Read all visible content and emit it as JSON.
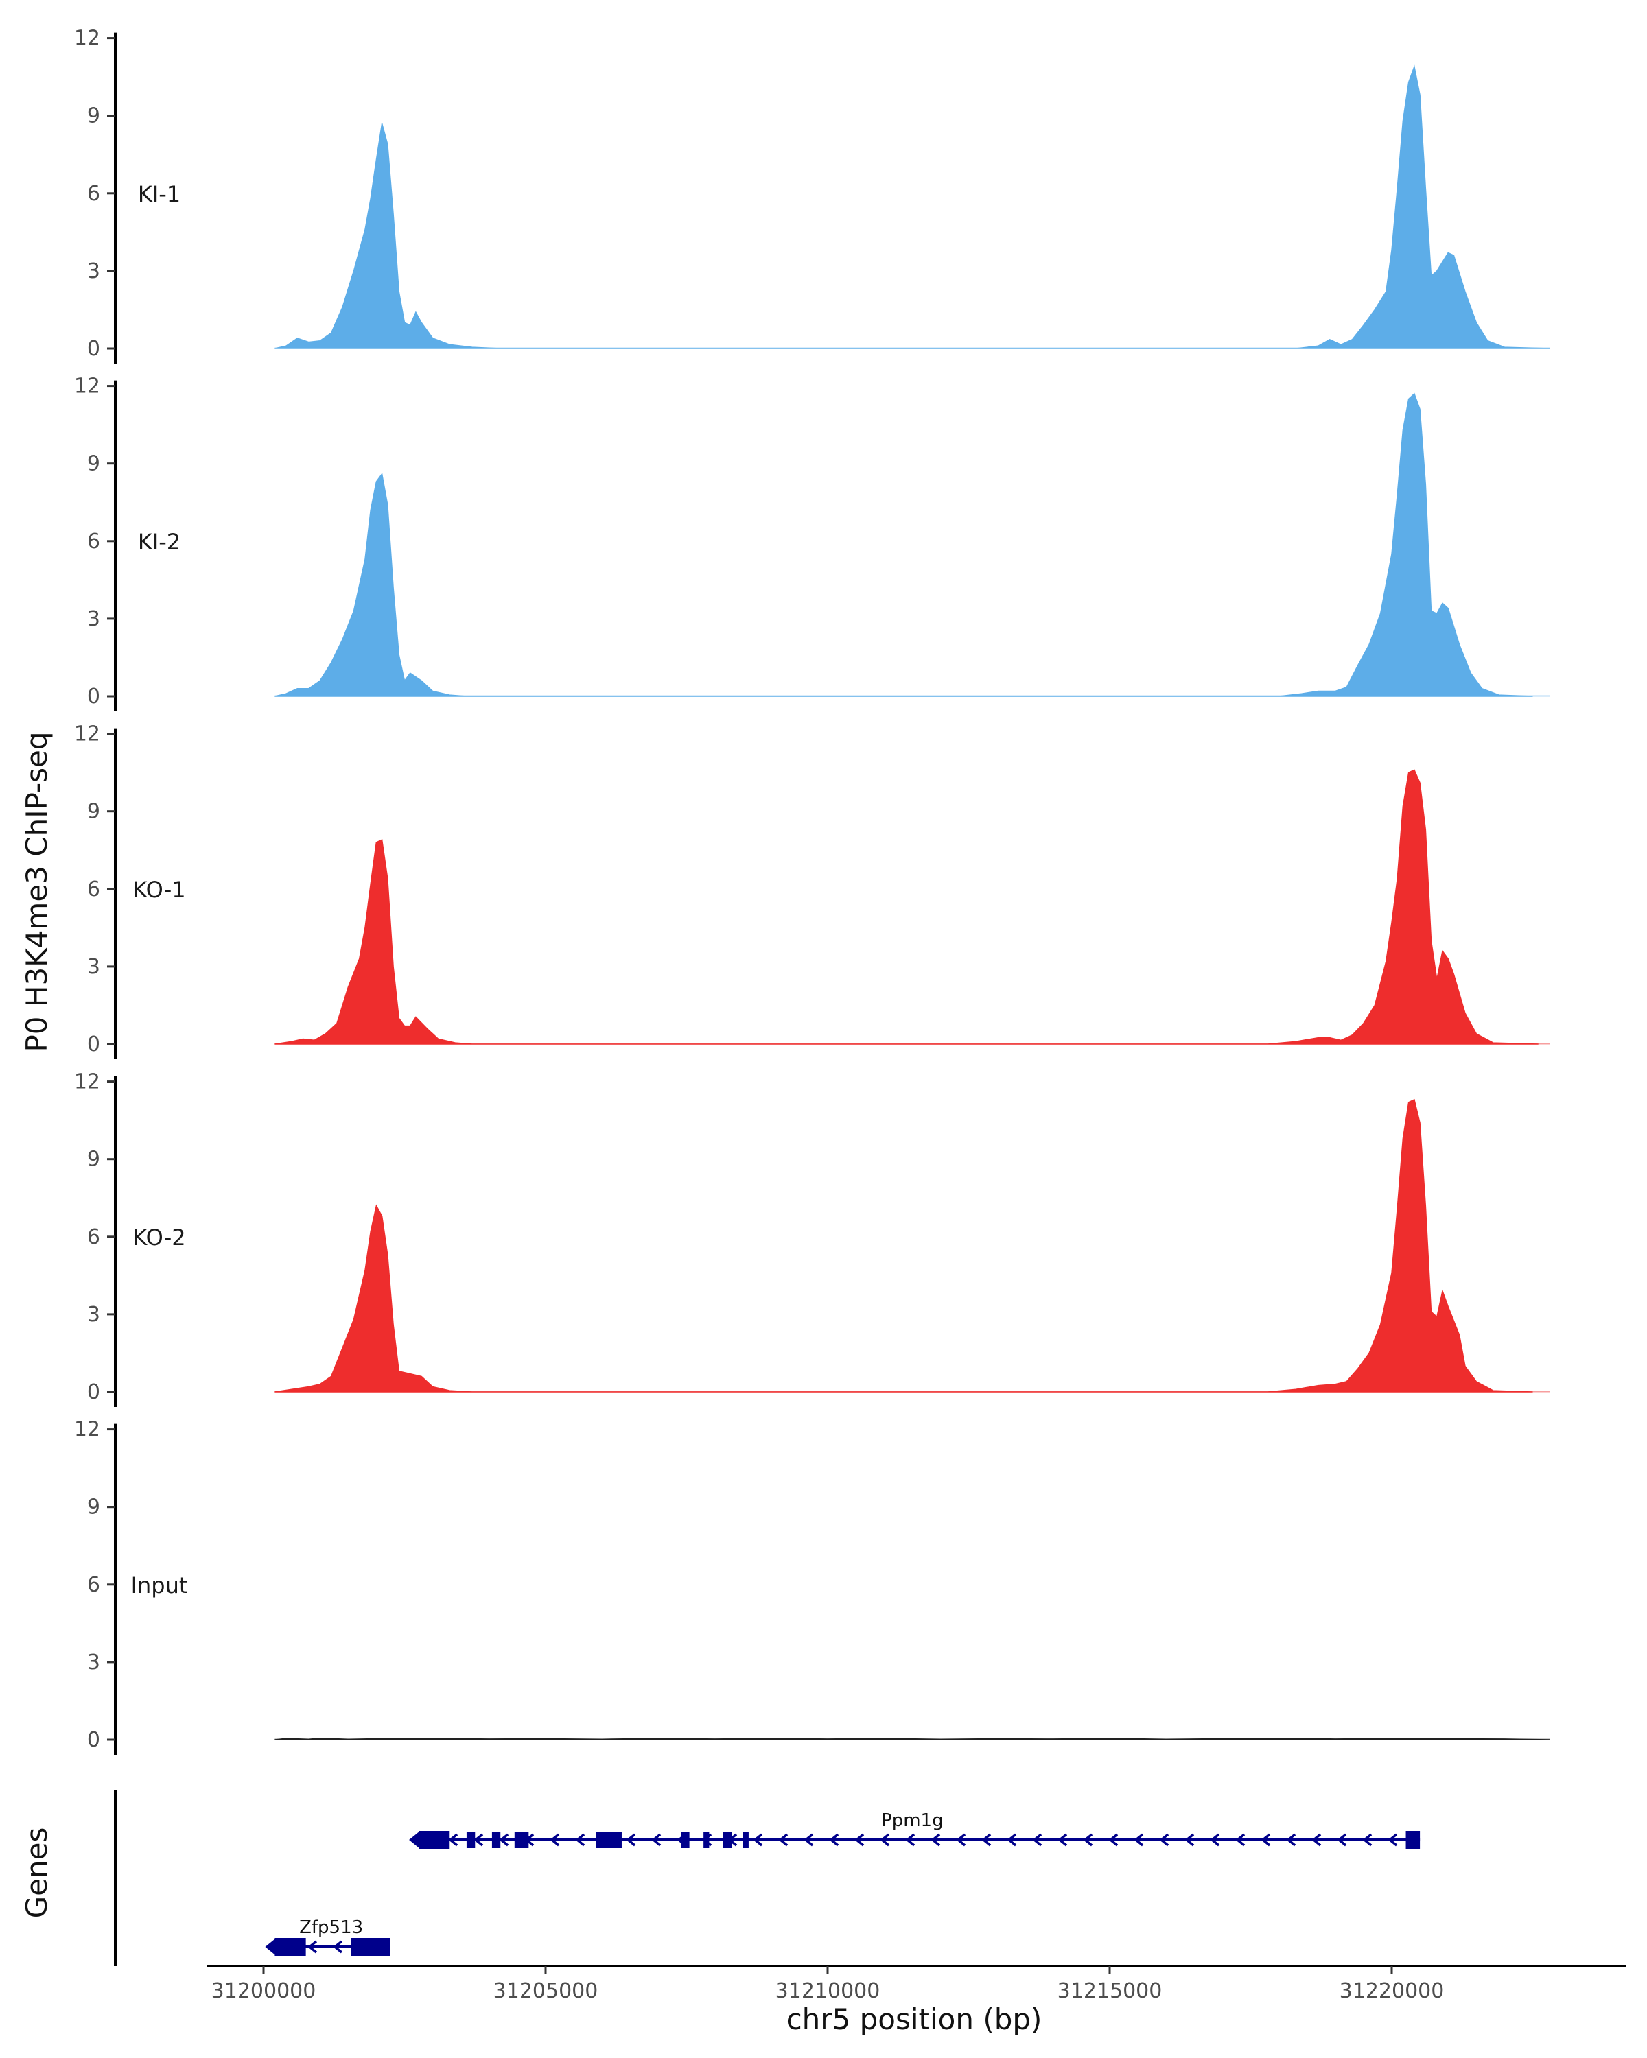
{
  "chart_data": {
    "type": "area",
    "title": "",
    "ylabel": "P0 H3K4me3 ChIP-seq",
    "xlabel": "chr5 position (bp)",
    "xlim": [
      31199000,
      31224000
    ],
    "ylim": [
      0,
      12
    ],
    "yticks": [
      0,
      3,
      6,
      9,
      12
    ],
    "xticks": [
      31200000,
      31205000,
      31210000,
      31215000,
      31220000
    ],
    "data_range": [
      31200200,
      31222800
    ],
    "tracks": [
      {
        "name": "KI-1",
        "color": "#5DADE8",
        "points": [
          [
            31200200,
            0
          ],
          [
            31200400,
            0.1
          ],
          [
            31200600,
            0.4
          ],
          [
            31200800,
            0.25
          ],
          [
            31201000,
            0.3
          ],
          [
            31201200,
            0.6
          ],
          [
            31201400,
            1.6
          ],
          [
            31201600,
            3.0
          ],
          [
            31201800,
            4.6
          ],
          [
            31201900,
            5.8
          ],
          [
            31202000,
            7.3
          ],
          [
            31202100,
            8.7
          ],
          [
            31202200,
            7.9
          ],
          [
            31202300,
            5.2
          ],
          [
            31202400,
            2.2
          ],
          [
            31202500,
            1.0
          ],
          [
            31202600,
            0.9
          ],
          [
            31202700,
            1.4
          ],
          [
            31202800,
            1.0
          ],
          [
            31203000,
            0.4
          ],
          [
            31203300,
            0.15
          ],
          [
            31203700,
            0.05
          ],
          [
            31204200,
            0
          ],
          [
            31218300,
            0
          ],
          [
            31218700,
            0.1
          ],
          [
            31218900,
            0.35
          ],
          [
            31219100,
            0.15
          ],
          [
            31219300,
            0.35
          ],
          [
            31219500,
            0.9
          ],
          [
            31219700,
            1.5
          ],
          [
            31219900,
            2.2
          ],
          [
            31220000,
            3.8
          ],
          [
            31220100,
            6.2
          ],
          [
            31220200,
            8.8
          ],
          [
            31220300,
            10.3
          ],
          [
            31220400,
            10.9
          ],
          [
            31220500,
            9.8
          ],
          [
            31220600,
            6.2
          ],
          [
            31220700,
            2.8
          ],
          [
            31220800,
            3.0
          ],
          [
            31221000,
            3.7
          ],
          [
            31221100,
            3.6
          ],
          [
            31221300,
            2.2
          ],
          [
            31221500,
            1.0
          ],
          [
            31221700,
            0.3
          ],
          [
            31222000,
            0.05
          ],
          [
            31222800,
            0
          ]
        ]
      },
      {
        "name": "KI-2",
        "color": "#5DADE8",
        "points": [
          [
            31200200,
            0
          ],
          [
            31200400,
            0.1
          ],
          [
            31200600,
            0.3
          ],
          [
            31200800,
            0.3
          ],
          [
            31201000,
            0.6
          ],
          [
            31201200,
            1.3
          ],
          [
            31201400,
            2.2
          ],
          [
            31201600,
            3.3
          ],
          [
            31201800,
            5.3
          ],
          [
            31201900,
            7.2
          ],
          [
            31202000,
            8.3
          ],
          [
            31202100,
            8.6
          ],
          [
            31202200,
            7.4
          ],
          [
            31202300,
            4.2
          ],
          [
            31202400,
            1.6
          ],
          [
            31202500,
            0.6
          ],
          [
            31202600,
            0.9
          ],
          [
            31202800,
            0.6
          ],
          [
            31203000,
            0.2
          ],
          [
            31203300,
            0.05
          ],
          [
            31203600,
            0
          ],
          [
            31218000,
            0
          ],
          [
            31218400,
            0.1
          ],
          [
            31218700,
            0.2
          ],
          [
            31219000,
            0.2
          ],
          [
            31219200,
            0.35
          ],
          [
            31219400,
            1.2
          ],
          [
            31219600,
            2.0
          ],
          [
            31219800,
            3.2
          ],
          [
            31220000,
            5.5
          ],
          [
            31220100,
            7.8
          ],
          [
            31220200,
            10.3
          ],
          [
            31220300,
            11.5
          ],
          [
            31220400,
            11.7
          ],
          [
            31220500,
            11.1
          ],
          [
            31220600,
            8.2
          ],
          [
            31220700,
            3.3
          ],
          [
            31220800,
            3.2
          ],
          [
            31220900,
            3.6
          ],
          [
            31221000,
            3.4
          ],
          [
            31221200,
            2.0
          ],
          [
            31221400,
            0.9
          ],
          [
            31221600,
            0.3
          ],
          [
            31221900,
            0.05
          ],
          [
            31222500,
            0
          ]
        ]
      },
      {
        "name": "KO-1",
        "color": "#EE2D2D",
        "points": [
          [
            31200200,
            0
          ],
          [
            31200500,
            0.1
          ],
          [
            31200700,
            0.2
          ],
          [
            31200900,
            0.15
          ],
          [
            31201100,
            0.4
          ],
          [
            31201300,
            0.8
          ],
          [
            31201500,
            2.2
          ],
          [
            31201700,
            3.3
          ],
          [
            31201800,
            4.5
          ],
          [
            31201900,
            6.2
          ],
          [
            31202000,
            7.8
          ],
          [
            31202100,
            7.9
          ],
          [
            31202200,
            6.4
          ],
          [
            31202300,
            3.0
          ],
          [
            31202400,
            1.0
          ],
          [
            31202500,
            0.7
          ],
          [
            31202600,
            0.7
          ],
          [
            31202700,
            1.05
          ],
          [
            31202900,
            0.6
          ],
          [
            31203100,
            0.2
          ],
          [
            31203400,
            0.05
          ],
          [
            31203700,
            0
          ],
          [
            31217800,
            0
          ],
          [
            31218300,
            0.1
          ],
          [
            31218700,
            0.25
          ],
          [
            31218900,
            0.25
          ],
          [
            31219100,
            0.15
          ],
          [
            31219300,
            0.35
          ],
          [
            31219500,
            0.8
          ],
          [
            31219700,
            1.5
          ],
          [
            31219900,
            3.2
          ],
          [
            31220000,
            4.7
          ],
          [
            31220100,
            6.4
          ],
          [
            31220200,
            9.2
          ],
          [
            31220300,
            10.5
          ],
          [
            31220400,
            10.6
          ],
          [
            31220500,
            10.1
          ],
          [
            31220600,
            8.3
          ],
          [
            31220700,
            4.0
          ],
          [
            31220800,
            2.5
          ],
          [
            31220900,
            3.6
          ],
          [
            31221000,
            3.3
          ],
          [
            31221100,
            2.7
          ],
          [
            31221300,
            1.2
          ],
          [
            31221500,
            0.4
          ],
          [
            31221800,
            0.05
          ],
          [
            31222600,
            0
          ]
        ]
      },
      {
        "name": "KO-2",
        "color": "#EE2D2D",
        "points": [
          [
            31200200,
            0
          ],
          [
            31200500,
            0.1
          ],
          [
            31200800,
            0.2
          ],
          [
            31201000,
            0.3
          ],
          [
            31201200,
            0.6
          ],
          [
            31201400,
            1.7
          ],
          [
            31201600,
            2.8
          ],
          [
            31201800,
            4.7
          ],
          [
            31201900,
            6.2
          ],
          [
            31202000,
            7.2
          ],
          [
            31202100,
            6.8
          ],
          [
            31202200,
            5.3
          ],
          [
            31202300,
            2.6
          ],
          [
            31202400,
            0.8
          ],
          [
            31202600,
            0.7
          ],
          [
            31202800,
            0.6
          ],
          [
            31203000,
            0.2
          ],
          [
            31203300,
            0.05
          ],
          [
            31203700,
            0
          ],
          [
            31217800,
            0
          ],
          [
            31218300,
            0.1
          ],
          [
            31218700,
            0.25
          ],
          [
            31219000,
            0.3
          ],
          [
            31219200,
            0.4
          ],
          [
            31219400,
            0.9
          ],
          [
            31219600,
            1.5
          ],
          [
            31219800,
            2.6
          ],
          [
            31220000,
            4.6
          ],
          [
            31220100,
            7.1
          ],
          [
            31220200,
            9.8
          ],
          [
            31220300,
            11.2
          ],
          [
            31220400,
            11.3
          ],
          [
            31220500,
            10.4
          ],
          [
            31220600,
            7.2
          ],
          [
            31220700,
            3.1
          ],
          [
            31220800,
            2.9
          ],
          [
            31220900,
            3.9
          ],
          [
            31221000,
            3.3
          ],
          [
            31221200,
            2.2
          ],
          [
            31221300,
            1.0
          ],
          [
            31221500,
            0.4
          ],
          [
            31221800,
            0.05
          ],
          [
            31222500,
            0
          ]
        ]
      },
      {
        "name": "Input",
        "color": "#222222",
        "points": [
          [
            31200200,
            0
          ],
          [
            31200400,
            0.05
          ],
          [
            31200800,
            0.02
          ],
          [
            31201000,
            0.06
          ],
          [
            31201500,
            0.02
          ],
          [
            31202000,
            0.04
          ],
          [
            31203000,
            0.05
          ],
          [
            31204000,
            0.03
          ],
          [
            31205000,
            0.04
          ],
          [
            31206000,
            0.02
          ],
          [
            31207000,
            0.05
          ],
          [
            31208000,
            0.03
          ],
          [
            31209000,
            0.05
          ],
          [
            31210000,
            0.03
          ],
          [
            31211000,
            0.05
          ],
          [
            31212000,
            0.02
          ],
          [
            31213000,
            0.04
          ],
          [
            31214000,
            0.03
          ],
          [
            31215000,
            0.05
          ],
          [
            31216000,
            0.02
          ],
          [
            31217000,
            0.04
          ],
          [
            31218000,
            0.06
          ],
          [
            31219000,
            0.03
          ],
          [
            31220000,
            0.05
          ],
          [
            31221000,
            0.04
          ],
          [
            31222000,
            0.03
          ],
          [
            31222800,
            0
          ]
        ]
      }
    ],
    "genes_panel": {
      "ylabel": "Genes",
      "color": "#00008B",
      "genes": [
        {
          "name": "Ppm1g",
          "strand": "-",
          "start": 31202750,
          "end": 31220500,
          "label_pos": 31211500,
          "exons": [
            [
              31202750,
              31203300
            ],
            [
              31203600,
              31203750
            ],
            [
              31204050,
              31204200
            ],
            [
              31204450,
              31204700
            ],
            [
              31205900,
              31206350
            ],
            [
              31207400,
              31207550
            ],
            [
              31207800,
              31207900
            ],
            [
              31208150,
              31208300
            ],
            [
              31208500,
              31208600
            ],
            [
              31220250,
              31220500
            ]
          ]
        },
        {
          "name": "Zfp513",
          "strand": "-",
          "start": 31200200,
          "end": 31202250,
          "label_pos": 31201200,
          "exons": [
            [
              31200200,
              31200750
            ],
            [
              31201550,
              31202250
            ]
          ]
        }
      ]
    }
  }
}
